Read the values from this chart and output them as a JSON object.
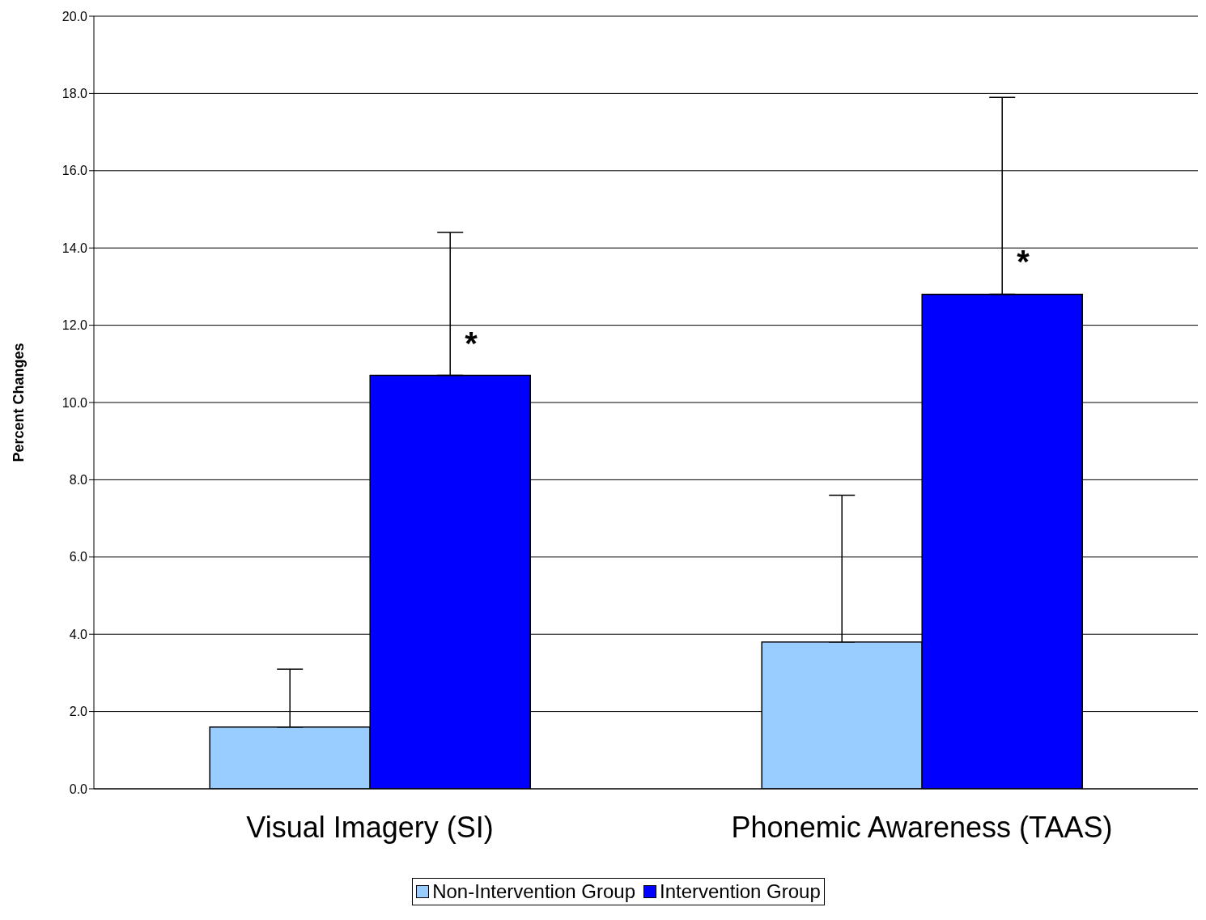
{
  "chart_data": {
    "type": "bar",
    "ylabel": "Percent Changes",
    "categories": [
      "Visual Imagery (SI)",
      "Phonemic Awareness (TAAS)"
    ],
    "series": [
      {
        "name": "Non-Intervention Group",
        "color": "#99ccff",
        "values": [
          1.6,
          3.8
        ],
        "errors": [
          [
            1.6,
            3.1
          ],
          [
            3.8,
            7.6
          ]
        ]
      },
      {
        "name": "Intervention Group",
        "color": "#0000ff",
        "values": [
          10.7,
          12.8
        ],
        "errors": [
          [
            10.7,
            14.4
          ],
          [
            12.8,
            17.9
          ]
        ]
      }
    ],
    "ylim": [
      0,
      20
    ],
    "yticks": [
      {
        "value": 0,
        "label": "0.0"
      },
      {
        "value": 2,
        "label": "2.0"
      },
      {
        "value": 4,
        "label": "4.0"
      },
      {
        "value": 6,
        "label": "6.0"
      },
      {
        "value": 8,
        "label": "8.0"
      },
      {
        "value": 10,
        "label": "10.0"
      },
      {
        "value": 12,
        "label": "12.0"
      },
      {
        "value": 14,
        "label": "14.0"
      },
      {
        "value": 16,
        "label": "16.0"
      },
      {
        "value": 18,
        "label": "18.0"
      },
      {
        "value": 20,
        "label": "20.0"
      }
    ],
    "grid": "y",
    "legend": "bottom",
    "annotations": [
      "*",
      "*"
    ]
  }
}
